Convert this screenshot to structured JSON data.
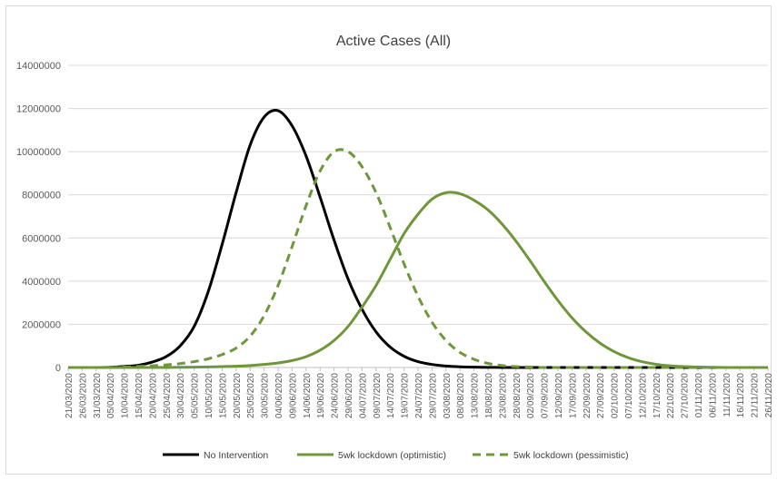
{
  "chart_data": {
    "type": "line",
    "title": "Active Cases (All)",
    "xlabel": "",
    "ylabel": "",
    "ylim": [
      0,
      14000000
    ],
    "yticks": [
      0,
      2000000,
      4000000,
      6000000,
      8000000,
      10000000,
      12000000,
      14000000
    ],
    "grid": true,
    "legend_placement": "bottom",
    "x_tick_labels": [
      "21/03/2020",
      "26/03/2020",
      "31/03/2020",
      "05/04/2020",
      "10/04/2020",
      "15/04/2020",
      "20/04/2020",
      "25/04/2020",
      "30/04/2020",
      "05/05/2020",
      "10/05/2020",
      "15/05/2020",
      "20/05/2020",
      "25/05/2020",
      "30/05/2020",
      "04/06/2020",
      "09/06/2020",
      "14/06/2020",
      "19/06/2020",
      "24/06/2020",
      "29/06/2020",
      "04/07/2020",
      "09/07/2020",
      "14/07/2020",
      "19/07/2020",
      "24/07/2020",
      "29/07/2020",
      "03/08/2020",
      "08/08/2020",
      "13/08/2020",
      "18/08/2020",
      "23/08/2020",
      "28/08/2020",
      "02/09/2020",
      "07/09/2020",
      "12/09/2020",
      "17/09/2020",
      "22/09/2020",
      "27/09/2020",
      "02/10/2020",
      "07/10/2020",
      "12/10/2020",
      "17/10/2020",
      "22/10/2020",
      "27/10/2020",
      "01/11/2020",
      "06/11/2020",
      "11/11/2020",
      "16/11/2020",
      "21/11/2020",
      "26/11/2020"
    ],
    "series": [
      {
        "name": "No Intervention",
        "color": "#000000",
        "dash": "solid",
        "values": [
          0,
          0,
          0,
          10000,
          50000,
          100000,
          250000,
          500000,
          1000000,
          1900000,
          3500000,
          5700000,
          8100000,
          10300000,
          11600000,
          11900000,
          11200000,
          9800000,
          7900000,
          5900000,
          4100000,
          2700000,
          1650000,
          950000,
          520000,
          270000,
          140000,
          70000,
          30000,
          15000,
          5000,
          2000,
          0,
          0,
          0,
          0,
          0,
          0,
          0,
          0,
          0,
          0,
          0,
          0,
          0,
          0,
          0,
          0,
          0,
          0,
          0
        ]
      },
      {
        "name": "5wk lockdown (optimistic)",
        "color": "#70963c",
        "dash": "solid",
        "values": [
          0,
          0,
          0,
          0,
          0,
          0,
          0,
          0,
          10000,
          15000,
          25000,
          40000,
          60000,
          90000,
          140000,
          210000,
          320000,
          500000,
          800000,
          1250000,
          1900000,
          2800000,
          3800000,
          5000000,
          6200000,
          7100000,
          7800000,
          8100000,
          8050000,
          7750000,
          7300000,
          6650000,
          5850000,
          4950000,
          4000000,
          3100000,
          2300000,
          1650000,
          1130000,
          740000,
          460000,
          270000,
          150000,
          80000,
          40000,
          20000,
          10000,
          0,
          0,
          0,
          0
        ]
      },
      {
        "name": "5wk lockdown (pessimistic)",
        "color": "#70963c",
        "dash": "dashed",
        "values": [
          0,
          0,
          0,
          0,
          20000,
          50000,
          80000,
          120000,
          180000,
          270000,
          400000,
          600000,
          900000,
          1450000,
          2400000,
          3800000,
          5600000,
          7500000,
          9100000,
          10000000,
          10000000,
          9300000,
          8100000,
          6500000,
          4800000,
          3300000,
          2100000,
          1250000,
          700000,
          380000,
          190000,
          90000,
          40000,
          20000,
          0,
          0,
          0,
          0,
          0,
          0,
          0,
          0,
          0,
          0,
          0,
          0,
          0,
          0,
          0,
          0,
          0
        ]
      }
    ]
  }
}
